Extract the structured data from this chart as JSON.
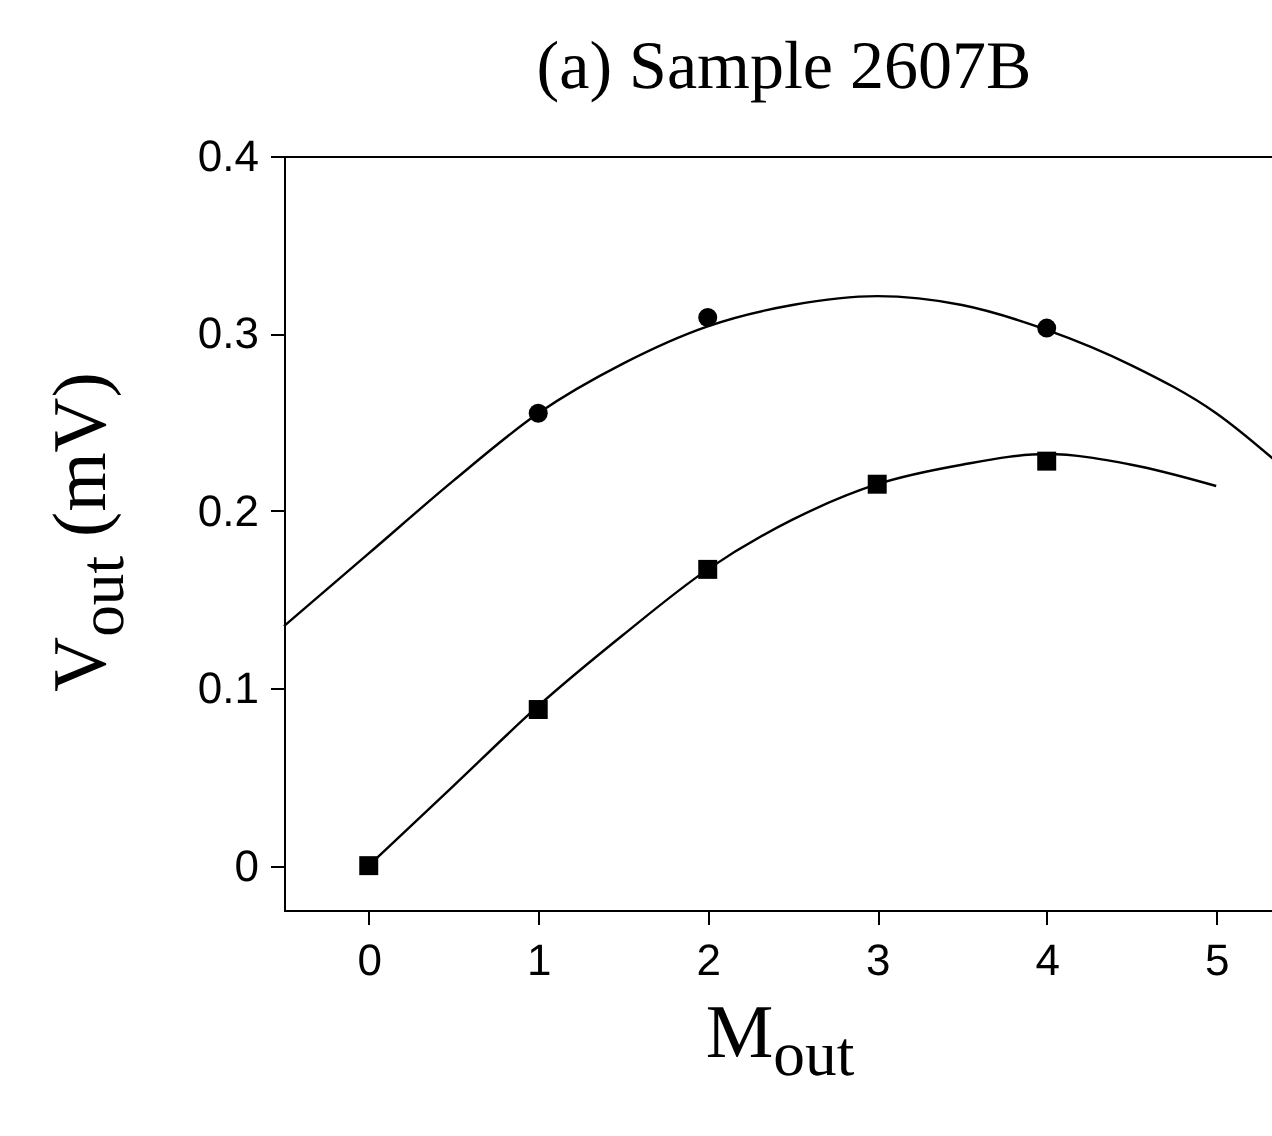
{
  "chart_data": {
    "type": "scatter",
    "title": "(a) Sample 2607B",
    "xlabel": "M$_{out}$",
    "ylabel": "V$_{out}$ (mV)",
    "xlim": [
      -0.5,
      5.4
    ],
    "ylim": [
      -0.025,
      0.4
    ],
    "xticks": [
      0,
      1,
      2,
      3,
      4,
      5
    ],
    "yticks": [
      0,
      0.1,
      0.2,
      0.3,
      0.4
    ],
    "grid": false,
    "series": [
      {
        "type": "line",
        "color": "#000000",
        "marker": "none",
        "x": [
          -0.5,
          0,
          0.5,
          1,
          1.5,
          2,
          2.5,
          3,
          3.5,
          4,
          4.5,
          5,
          5.4
        ],
        "values": [
          0.135,
          0.176,
          0.217,
          0.255,
          0.283,
          0.304,
          0.316,
          0.321,
          0.316,
          0.302,
          0.282,
          0.255,
          0.224
        ]
      },
      {
        "type": "line",
        "color": "#000000",
        "marker": "none",
        "x": [
          0,
          0.5,
          1,
          1.5,
          2,
          2.5,
          3,
          3.5,
          4,
          4.5,
          5
        ],
        "values": [
          0.0,
          0.045,
          0.09,
          0.13,
          0.167,
          0.195,
          0.215,
          0.226,
          0.232,
          0.226,
          0.214
        ]
      },
      {
        "color": "#000000",
        "marker": "circle",
        "x": [
          1,
          2,
          4
        ],
        "values": [
          0.255,
          0.309,
          0.303
        ]
      },
      {
        "color": "#000000",
        "marker": "square",
        "x": [
          0,
          1,
          2,
          3,
          4
        ],
        "values": [
          0.0,
          0.088,
          0.167,
          0.215,
          0.228
        ]
      }
    ]
  }
}
